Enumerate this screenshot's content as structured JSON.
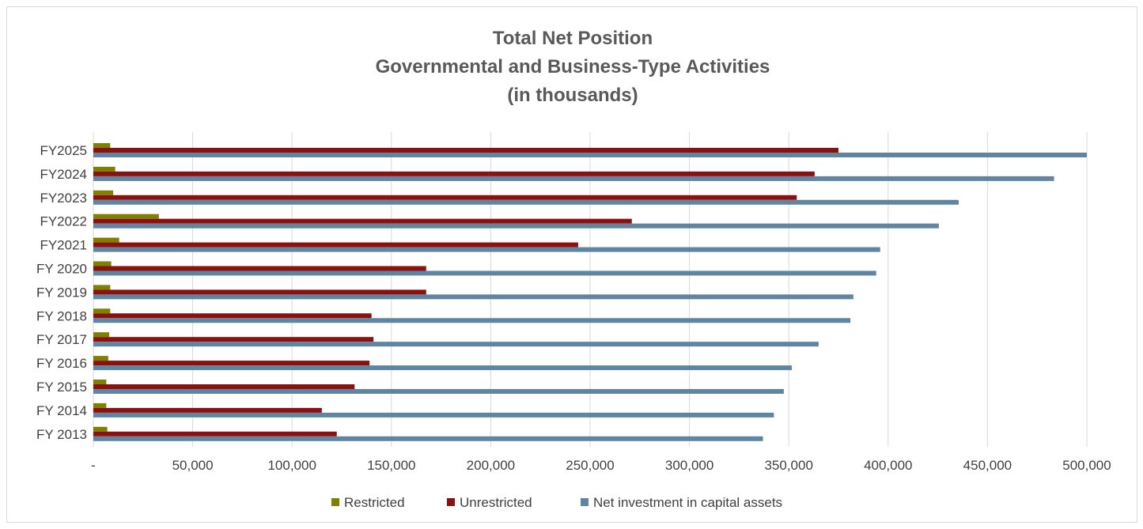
{
  "chart_data": {
    "type": "bar",
    "orientation": "horizontal",
    "title": [
      "Total Net Position",
      "Governmental and Business-Type Activities",
      "(in thousands)"
    ],
    "categories": [
      "FY 2013",
      "FY 2014",
      "FY 2015",
      "FY 2016",
      "FY 2017",
      "FY 2018",
      "FY 2019",
      "FY 2020",
      "FY2021",
      "FY2022",
      "FY2023",
      "FY2024",
      "FY2025"
    ],
    "series": [
      {
        "name": "Restricted",
        "color": "#7f7f00",
        "values": [
          7000,
          6500,
          6500,
          7500,
          8000,
          8500,
          8500,
          9000,
          13000,
          33000,
          10000,
          11000,
          8500
        ]
      },
      {
        "name": "Unrestricted",
        "color": "#8b1010",
        "values": [
          122500,
          115000,
          131500,
          139000,
          141000,
          140000,
          167500,
          167500,
          244000,
          271000,
          354000,
          363000,
          375000
        ]
      },
      {
        "name": "Net investment in capital assets",
        "color": "#5f85a0",
        "values": [
          337000,
          342500,
          347500,
          351500,
          365000,
          381000,
          382500,
          394000,
          396000,
          425500,
          435500,
          483500,
          500000
        ]
      }
    ],
    "x_ticks": [
      "-",
      "50,000",
      "100,000",
      "150,000",
      "200,000",
      "250,000",
      "300,000",
      "350,000",
      "400,000",
      "450,000",
      "500,000"
    ],
    "xlim": [
      0,
      500000
    ],
    "grid": true,
    "legend_position": "bottom"
  }
}
